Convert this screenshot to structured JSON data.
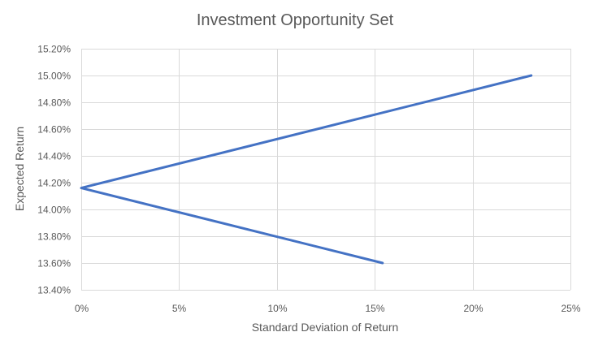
{
  "chart_data": {
    "type": "line",
    "title": "Investment Opportunity Set",
    "xlabel": "Standard Deviation of Return",
    "ylabel": "Expected Return",
    "xlim": [
      0,
      25
    ],
    "ylim": [
      13.4,
      15.2
    ],
    "grid": true,
    "x_ticks": [
      "0%",
      "5%",
      "10%",
      "15%",
      "20%",
      "25%"
    ],
    "y_ticks": [
      "13.40%",
      "13.60%",
      "13.80%",
      "14.00%",
      "14.20%",
      "14.40%",
      "14.60%",
      "14.80%",
      "15.00%",
      "15.20%"
    ],
    "series": [
      {
        "color": "#4472c4",
        "points": [
          {
            "x": 15.4,
            "y": 13.6
          },
          {
            "x": 0.0,
            "y": 14.16
          },
          {
            "x": 23.0,
            "y": 15.0
          }
        ]
      }
    ]
  }
}
